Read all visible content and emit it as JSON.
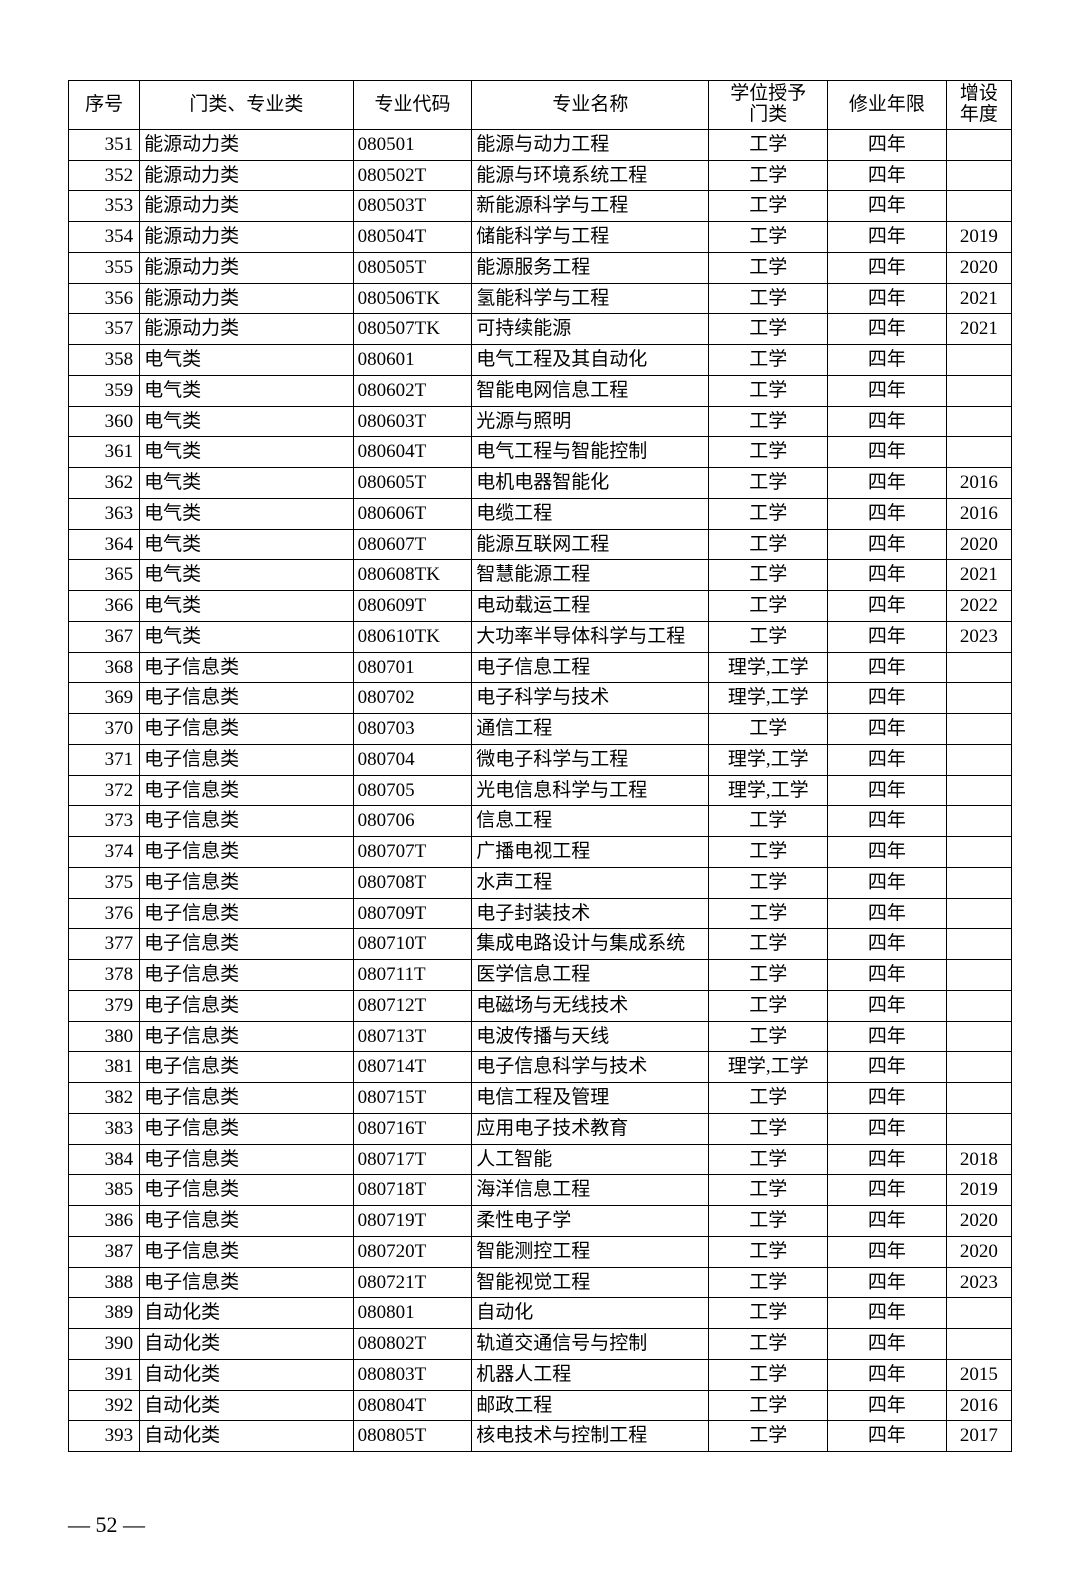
{
  "columns": [
    "序号",
    "门类、专业类",
    "专业代码",
    "专业名称",
    "学位授予门类",
    "修业年限",
    "增设年度"
  ],
  "header_year_lines": [
    "增设",
    "年度"
  ],
  "header_deg_lines": [
    "学位授予",
    "门类"
  ],
  "page_number": "— 52 —",
  "rows": [
    {
      "seq": "351",
      "cat": "能源动力类",
      "code": "080501",
      "name": "能源与动力工程",
      "deg": "工学",
      "dur": "四年",
      "year": ""
    },
    {
      "seq": "352",
      "cat": "能源动力类",
      "code": "080502T",
      "name": "能源与环境系统工程",
      "deg": "工学",
      "dur": "四年",
      "year": ""
    },
    {
      "seq": "353",
      "cat": "能源动力类",
      "code": "080503T",
      "name": "新能源科学与工程",
      "deg": "工学",
      "dur": "四年",
      "year": ""
    },
    {
      "seq": "354",
      "cat": "能源动力类",
      "code": "080504T",
      "name": "储能科学与工程",
      "deg": "工学",
      "dur": "四年",
      "year": "2019"
    },
    {
      "seq": "355",
      "cat": "能源动力类",
      "code": "080505T",
      "name": "能源服务工程",
      "deg": "工学",
      "dur": "四年",
      "year": "2020"
    },
    {
      "seq": "356",
      "cat": "能源动力类",
      "code": "080506TK",
      "name": "氢能科学与工程",
      "deg": "工学",
      "dur": "四年",
      "year": "2021"
    },
    {
      "seq": "357",
      "cat": "能源动力类",
      "code": "080507TK",
      "name": "可持续能源",
      "deg": "工学",
      "dur": "四年",
      "year": "2021"
    },
    {
      "seq": "358",
      "cat": "电气类",
      "code": "080601",
      "name": "电气工程及其自动化",
      "deg": "工学",
      "dur": "四年",
      "year": ""
    },
    {
      "seq": "359",
      "cat": "电气类",
      "code": "080602T",
      "name": "智能电网信息工程",
      "deg": "工学",
      "dur": "四年",
      "year": ""
    },
    {
      "seq": "360",
      "cat": "电气类",
      "code": "080603T",
      "name": "光源与照明",
      "deg": "工学",
      "dur": "四年",
      "year": ""
    },
    {
      "seq": "361",
      "cat": "电气类",
      "code": "080604T",
      "name": "电气工程与智能控制",
      "deg": "工学",
      "dur": "四年",
      "year": ""
    },
    {
      "seq": "362",
      "cat": "电气类",
      "code": "080605T",
      "name": "电机电器智能化",
      "deg": "工学",
      "dur": "四年",
      "year": "2016"
    },
    {
      "seq": "363",
      "cat": "电气类",
      "code": "080606T",
      "name": "电缆工程",
      "deg": "工学",
      "dur": "四年",
      "year": "2016"
    },
    {
      "seq": "364",
      "cat": "电气类",
      "code": "080607T",
      "name": "能源互联网工程",
      "deg": "工学",
      "dur": "四年",
      "year": "2020"
    },
    {
      "seq": "365",
      "cat": "电气类",
      "code": "080608TK",
      "name": "智慧能源工程",
      "deg": "工学",
      "dur": "四年",
      "year": "2021"
    },
    {
      "seq": "366",
      "cat": "电气类",
      "code": "080609T",
      "name": "电动载运工程",
      "deg": "工学",
      "dur": "四年",
      "year": "2022"
    },
    {
      "seq": "367",
      "cat": "电气类",
      "code": "080610TK",
      "name": "大功率半导体科学与工程",
      "deg": "工学",
      "dur": "四年",
      "year": "2023"
    },
    {
      "seq": "368",
      "cat": "电子信息类",
      "code": "080701",
      "name": "电子信息工程",
      "deg": "理学,工学",
      "dur": "四年",
      "year": ""
    },
    {
      "seq": "369",
      "cat": "电子信息类",
      "code": "080702",
      "name": "电子科学与技术",
      "deg": "理学,工学",
      "dur": "四年",
      "year": ""
    },
    {
      "seq": "370",
      "cat": "电子信息类",
      "code": "080703",
      "name": "通信工程",
      "deg": "工学",
      "dur": "四年",
      "year": ""
    },
    {
      "seq": "371",
      "cat": "电子信息类",
      "code": "080704",
      "name": "微电子科学与工程",
      "deg": "理学,工学",
      "dur": "四年",
      "year": ""
    },
    {
      "seq": "372",
      "cat": "电子信息类",
      "code": "080705",
      "name": "光电信息科学与工程",
      "deg": "理学,工学",
      "dur": "四年",
      "year": ""
    },
    {
      "seq": "373",
      "cat": "电子信息类",
      "code": "080706",
      "name": "信息工程",
      "deg": "工学",
      "dur": "四年",
      "year": ""
    },
    {
      "seq": "374",
      "cat": "电子信息类",
      "code": "080707T",
      "name": "广播电视工程",
      "deg": "工学",
      "dur": "四年",
      "year": ""
    },
    {
      "seq": "375",
      "cat": "电子信息类",
      "code": "080708T",
      "name": "水声工程",
      "deg": "工学",
      "dur": "四年",
      "year": ""
    },
    {
      "seq": "376",
      "cat": "电子信息类",
      "code": "080709T",
      "name": "电子封装技术",
      "deg": "工学",
      "dur": "四年",
      "year": ""
    },
    {
      "seq": "377",
      "cat": "电子信息类",
      "code": "080710T",
      "name": "集成电路设计与集成系统",
      "deg": "工学",
      "dur": "四年",
      "year": ""
    },
    {
      "seq": "378",
      "cat": "电子信息类",
      "code": "080711T",
      "name": "医学信息工程",
      "deg": "工学",
      "dur": "四年",
      "year": ""
    },
    {
      "seq": "379",
      "cat": "电子信息类",
      "code": "080712T",
      "name": "电磁场与无线技术",
      "deg": "工学",
      "dur": "四年",
      "year": ""
    },
    {
      "seq": "380",
      "cat": "电子信息类",
      "code": "080713T",
      "name": "电波传播与天线",
      "deg": "工学",
      "dur": "四年",
      "year": ""
    },
    {
      "seq": "381",
      "cat": "电子信息类",
      "code": "080714T",
      "name": "电子信息科学与技术",
      "deg": "理学,工学",
      "dur": "四年",
      "year": ""
    },
    {
      "seq": "382",
      "cat": "电子信息类",
      "code": "080715T",
      "name": "电信工程及管理",
      "deg": "工学",
      "dur": "四年",
      "year": ""
    },
    {
      "seq": "383",
      "cat": "电子信息类",
      "code": "080716T",
      "name": "应用电子技术教育",
      "deg": "工学",
      "dur": "四年",
      "year": ""
    },
    {
      "seq": "384",
      "cat": "电子信息类",
      "code": "080717T",
      "name": "人工智能",
      "deg": "工学",
      "dur": "四年",
      "year": "2018"
    },
    {
      "seq": "385",
      "cat": "电子信息类",
      "code": "080718T",
      "name": "海洋信息工程",
      "deg": "工学",
      "dur": "四年",
      "year": "2019"
    },
    {
      "seq": "386",
      "cat": "电子信息类",
      "code": "080719T",
      "name": "柔性电子学",
      "deg": "工学",
      "dur": "四年",
      "year": "2020"
    },
    {
      "seq": "387",
      "cat": "电子信息类",
      "code": "080720T",
      "name": "智能测控工程",
      "deg": "工学",
      "dur": "四年",
      "year": "2020"
    },
    {
      "seq": "388",
      "cat": "电子信息类",
      "code": "080721T",
      "name": "智能视觉工程",
      "deg": "工学",
      "dur": "四年",
      "year": "2023"
    },
    {
      "seq": "389",
      "cat": "自动化类",
      "code": "080801",
      "name": "自动化",
      "deg": "工学",
      "dur": "四年",
      "year": ""
    },
    {
      "seq": "390",
      "cat": "自动化类",
      "code": "080802T",
      "name": "轨道交通信号与控制",
      "deg": "工学",
      "dur": "四年",
      "year": ""
    },
    {
      "seq": "391",
      "cat": "自动化类",
      "code": "080803T",
      "name": "机器人工程",
      "deg": "工学",
      "dur": "四年",
      "year": "2015"
    },
    {
      "seq": "392",
      "cat": "自动化类",
      "code": "080804T",
      "name": "邮政工程",
      "deg": "工学",
      "dur": "四年",
      "year": "2016"
    },
    {
      "seq": "393",
      "cat": "自动化类",
      "code": "080805T",
      "name": "核电技术与控制工程",
      "deg": "工学",
      "dur": "四年",
      "year": "2017"
    }
  ]
}
